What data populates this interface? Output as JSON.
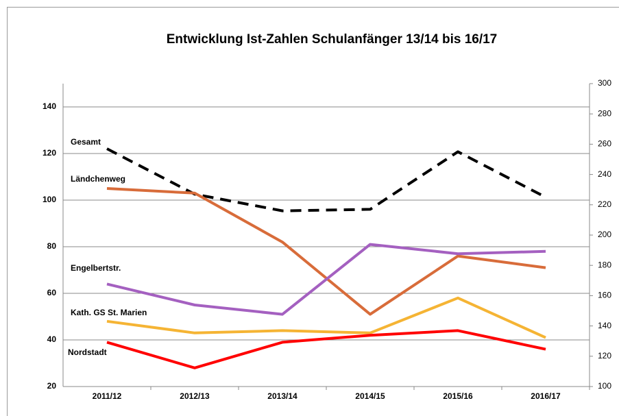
{
  "chart_data": {
    "type": "line",
    "title": "Entwicklung Ist-Zahlen Schulanfänger 13/14 bis 16/17",
    "categories": [
      "2011/12",
      "2012/13",
      "2013/14",
      "2014/15",
      "2015/16",
      "2016/17"
    ],
    "ylim": [
      20,
      150
    ],
    "yticks": [
      20,
      40,
      60,
      80,
      100,
      120,
      140
    ],
    "y2lim": [
      100,
      300
    ],
    "y2ticks": [
      100,
      120,
      140,
      160,
      180,
      200,
      220,
      240,
      260,
      280,
      300
    ],
    "grid": true,
    "series": [
      {
        "name": "Gesamt",
        "color": "#000000",
        "dashed": true,
        "axis": "y2",
        "values": [
          257,
          227,
          216,
          217,
          255,
          225
        ]
      },
      {
        "name": "Ländchenweg",
        "color": "#d86c3a",
        "values": [
          105,
          103,
          82,
          51,
          76,
          71
        ]
      },
      {
        "name": "Engelbertstr.",
        "color": "#a460c0",
        "values": [
          64,
          55,
          51,
          81,
          77,
          78
        ]
      },
      {
        "name": "Kath. GS St. Marien",
        "color": "#f5b434",
        "values": [
          48,
          43,
          44,
          43,
          58,
          41
        ]
      },
      {
        "name": "Nordstadt",
        "color": "#ff0000",
        "values": [
          39,
          28,
          39,
          42,
          44,
          36
        ]
      }
    ]
  }
}
